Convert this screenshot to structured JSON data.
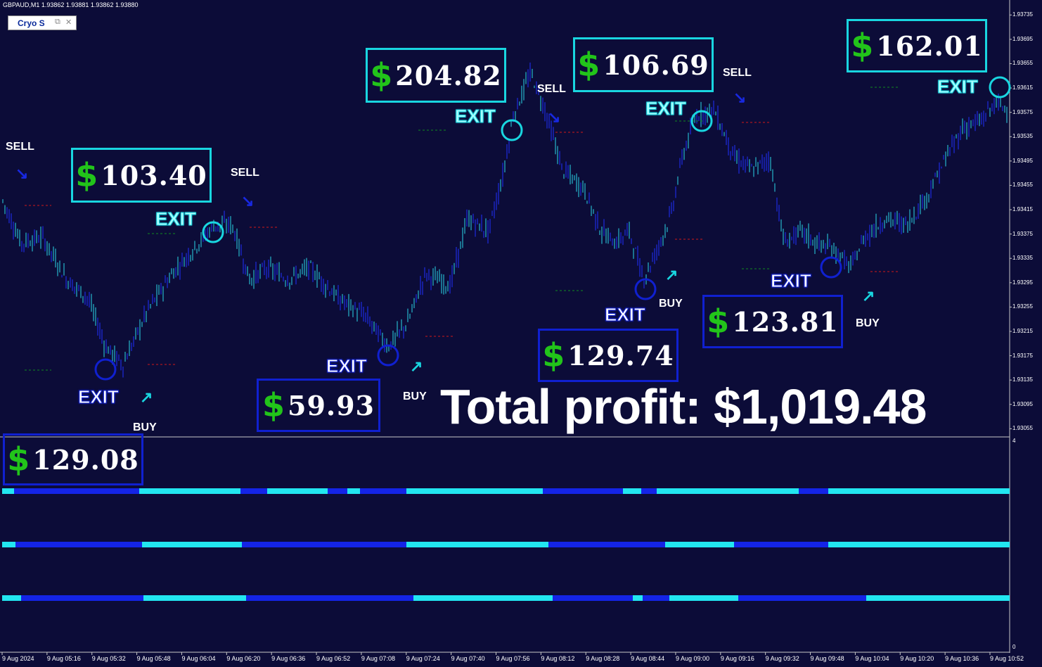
{
  "window": {
    "symbol_header": "GBPAUD,M1  1.93862 1.93881 1.93862 1.93880",
    "indicator_tab": "Cryo S"
  },
  "colors": {
    "background": "#0c0c38",
    "cyan": "#19d6e0",
    "blue": "#1020d0",
    "green_dollar": "#22c41a",
    "red_level": "#d01818",
    "green_level": "#0f8a20"
  },
  "total_profit": "Total profit: $1,019.48",
  "trade_boxes": [
    {
      "amount": "103.40",
      "style": "cyan"
    },
    {
      "amount": "204.82",
      "style": "cyan"
    },
    {
      "amount": "106.69",
      "style": "cyan"
    },
    {
      "amount": "162.01",
      "style": "cyan"
    },
    {
      "amount": "59.93",
      "style": "blue"
    },
    {
      "amount": "129.74",
      "style": "blue"
    },
    {
      "amount": "123.81",
      "style": "blue"
    },
    {
      "amount": "129.08",
      "style": "blue"
    }
  ],
  "signal_labels": {
    "exit": "EXIT",
    "sell": "SELL",
    "buy": "BUY"
  },
  "chart_data": {
    "type": "candlestick",
    "price_axis_labels": [
      "1.93735",
      "1.93695",
      "1.93655",
      "1.93615",
      "1.93575",
      "1.93535",
      "1.93495",
      "1.93455",
      "1.93415",
      "1.93375",
      "1.93335",
      "1.93295",
      "1.93255",
      "1.93215",
      "1.93175",
      "1.93135",
      "1.93095",
      "1.93055"
    ],
    "ylim": [
      1.93045,
      1.93755
    ],
    "time_axis_labels": [
      "9 Aug 2024",
      "9 Aug 05:16",
      "9 Aug 05:32",
      "9 Aug 05:48",
      "9 Aug 06:04",
      "9 Aug 06:20",
      "9 Aug 06:36",
      "9 Aug 06:52",
      "9 Aug 07:08",
      "9 Aug 07:24",
      "9 Aug 07:40",
      "9 Aug 07:56",
      "9 Aug 08:12",
      "9 Aug 08:28",
      "9 Aug 08:44",
      "9 Aug 09:00",
      "9 Aug 09:16",
      "9 Aug 09:32",
      "9 Aug 09:48",
      "9 Aug 10:04",
      "9 Aug 10:20",
      "9 Aug 10:36",
      "9 Aug 10:52"
    ],
    "price_path": [
      [
        0,
        1.9344
      ],
      [
        30,
        1.9336
      ],
      [
        60,
        1.9337
      ],
      [
        95,
        1.933
      ],
      [
        125,
        1.9327
      ],
      [
        150,
        1.9319
      ],
      [
        175,
        1.9316
      ],
      [
        210,
        1.9325
      ],
      [
        245,
        1.9331
      ],
      [
        275,
        1.9335
      ],
      [
        305,
        1.9339
      ],
      [
        330,
        1.9339
      ],
      [
        355,
        1.933
      ],
      [
        380,
        1.9332
      ],
      [
        410,
        1.933
      ],
      [
        440,
        1.9332
      ],
      [
        480,
        1.9327
      ],
      [
        520,
        1.9324
      ],
      [
        552,
        1.9319
      ],
      [
        580,
        1.9323
      ],
      [
        605,
        1.9331
      ],
      [
        640,
        1.9329
      ],
      [
        665,
        1.934
      ],
      [
        695,
        1.9338
      ],
      [
        715,
        1.9347
      ],
      [
        730,
        1.9357
      ],
      [
        755,
        1.9364
      ],
      [
        775,
        1.9358
      ],
      [
        800,
        1.9348
      ],
      [
        830,
        1.9345
      ],
      [
        855,
        1.9338
      ],
      [
        875,
        1.9336
      ],
      [
        895,
        1.9338
      ],
      [
        915,
        1.933
      ],
      [
        935,
        1.9335
      ],
      [
        955,
        1.9341
      ],
      [
        970,
        1.935
      ],
      [
        990,
        1.9357
      ],
      [
        1015,
        1.9358
      ],
      [
        1045,
        1.935
      ],
      [
        1070,
        1.9348
      ],
      [
        1095,
        1.935
      ],
      [
        1115,
        1.9336
      ],
      [
        1140,
        1.9338
      ],
      [
        1160,
        1.9336
      ],
      [
        1185,
        1.9335
      ],
      [
        1210,
        1.9332
      ],
      [
        1230,
        1.9337
      ],
      [
        1260,
        1.934
      ],
      [
        1290,
        1.9339
      ],
      [
        1320,
        1.9344
      ],
      [
        1345,
        1.935
      ],
      [
        1370,
        1.9355
      ],
      [
        1395,
        1.9356
      ],
      [
        1415,
        1.9359
      ],
      [
        1435,
        1.9358
      ]
    ],
    "signal_rows": 3,
    "lower_pane_axis": [
      "4",
      "0"
    ]
  }
}
